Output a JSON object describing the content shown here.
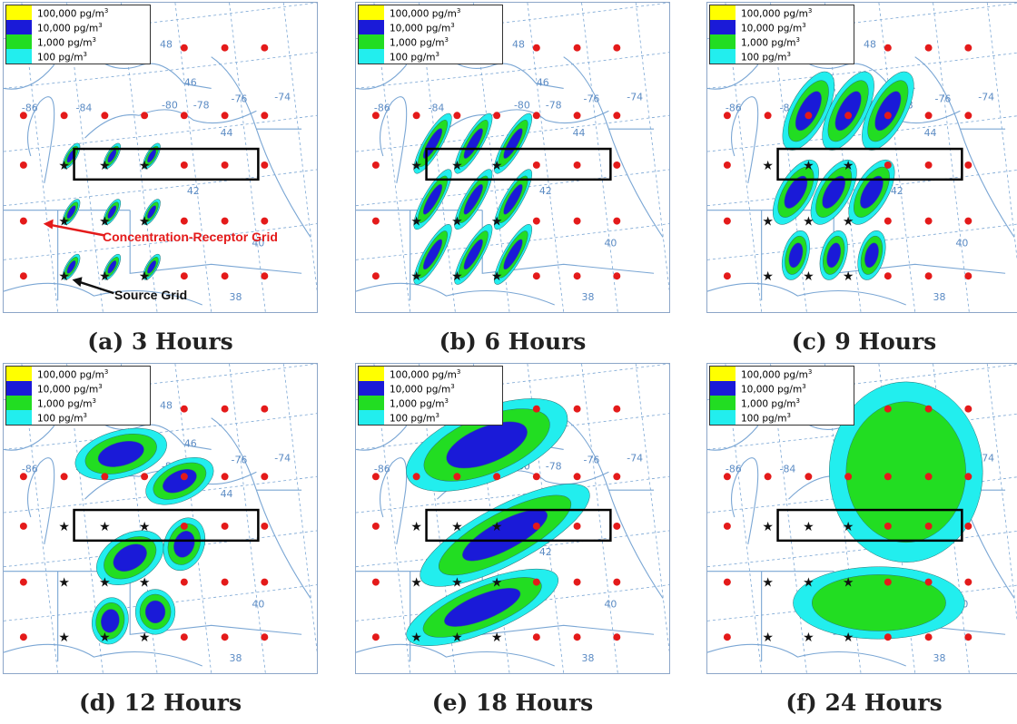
{
  "legend": {
    "unit_suffix": "pg/m",
    "unit_exponent": "3",
    "levels": [
      {
        "value": "100,000",
        "color": "#ffff00"
      },
      {
        "value": "10,000",
        "color": "#1a1ad8"
      },
      {
        "value": "1,000",
        "color": "#22dd22"
      },
      {
        "value": "100",
        "color": "#22eeee"
      }
    ]
  },
  "map_labels": {
    "lat": [
      "48",
      "46",
      "44",
      "42",
      "40",
      "38"
    ],
    "lon": [
      "-86",
      "-84",
      "-80",
      "-78",
      "-76",
      "-74"
    ]
  },
  "annotations": {
    "receptor": "Concentration-Receptor Grid",
    "source": "Source Grid"
  },
  "colors": {
    "receptor_dot": "#e41a1a",
    "source_star": "#111111",
    "box": "#000000",
    "map_lines": "#7aa6d4",
    "receptor_arrow": "#e41a1a"
  },
  "panels": [
    {
      "id": "a",
      "caption": "(a) 3 Hours"
    },
    {
      "id": "b",
      "caption": "(b) 6 Hours"
    },
    {
      "id": "c",
      "caption": "(c) 9 Hours"
    },
    {
      "id": "d",
      "caption": "(d) 12 Hours"
    },
    {
      "id": "e",
      "caption": "(e) 18 Hours"
    },
    {
      "id": "f",
      "caption": "(f) 24 Hours"
    }
  ]
}
